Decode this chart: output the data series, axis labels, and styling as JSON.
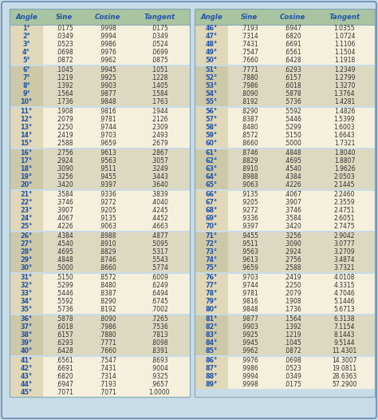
{
  "col_headers": [
    "Angle",
    "Sine",
    "Cosine",
    "Tangent"
  ],
  "header_bg": "#a8c4a0",
  "header_text_color": "#2255aa",
  "angle_color": "#2255aa",
  "value_color": "#333333",
  "outer_bg": "#c8dce8",
  "inner_bg_light": "#f5f0dc",
  "inner_bg_dark": "#ddd8c0",
  "table_border": "#88aabb",
  "outer_border": "#7799bb",
  "left_data": [
    [
      "1°",
      ".0175",
      ".9998",
      ".0175"
    ],
    [
      "2°",
      ".0349",
      ".9994",
      ".0349"
    ],
    [
      "3°",
      ".0523",
      ".9986",
      ".0524"
    ],
    [
      "4°",
      ".0698",
      ".9976",
      ".0699"
    ],
    [
      "5°",
      ".0872",
      ".9962",
      ".0875"
    ],
    [
      "6°",
      ".1045",
      ".9945",
      ".1051"
    ],
    [
      "7°",
      ".1219",
      ".9925",
      ".1228"
    ],
    [
      "8°",
      ".1392",
      ".9903",
      ".1405"
    ],
    [
      "9°",
      ".1564",
      ".9877",
      ".1584"
    ],
    [
      "10°",
      ".1736",
      ".9848",
      ".1763"
    ],
    [
      "11°",
      ".1908",
      ".9816",
      ".1944"
    ],
    [
      "12°",
      ".2079",
      ".9781",
      ".2126"
    ],
    [
      "13°",
      ".2250",
      ".9744",
      ".2309"
    ],
    [
      "14°",
      ".2419",
      ".9703",
      ".2493"
    ],
    [
      "15°",
      ".2588",
      ".9659",
      ".2679"
    ],
    [
      "16°",
      ".2756",
      ".9613",
      ".2867"
    ],
    [
      "17°",
      ".2924",
      ".9563",
      ".3057"
    ],
    [
      "18°",
      ".3090",
      ".9511",
      ".3249"
    ],
    [
      "19°",
      ".3256",
      ".9455",
      ".3443"
    ],
    [
      "20°",
      ".3420",
      ".9397",
      ".3640"
    ],
    [
      "21°",
      ".3584",
      ".9336",
      ".3839"
    ],
    [
      "22°",
      ".3746",
      ".9272",
      ".4040"
    ],
    [
      "23°",
      ".3907",
      ".9205",
      ".4245"
    ],
    [
      "24°",
      ".4067",
      ".9135",
      ".4452"
    ],
    [
      "25°",
      ".4226",
      ".9063",
      ".4663"
    ],
    [
      "26°",
      ".4384",
      ".8988",
      ".4877"
    ],
    [
      "27°",
      ".4540",
      ".8910",
      ".5095"
    ],
    [
      "28°",
      ".4695",
      ".8829",
      ".5317"
    ],
    [
      "29°",
      ".4848",
      ".8746",
      ".5543"
    ],
    [
      "30°",
      ".5000",
      ".8660",
      ".5774"
    ],
    [
      "31°",
      ".5150",
      ".8572",
      ".6009"
    ],
    [
      "32°",
      ".5299",
      ".8480",
      ".6249"
    ],
    [
      "33°",
      ".5446",
      ".8387",
      ".6494"
    ],
    [
      "34°",
      ".5592",
      ".8290",
      ".6745"
    ],
    [
      "35°",
      ".5736",
      ".8192",
      ".7002"
    ],
    [
      "36°",
      ".5878",
      ".8090",
      ".7265"
    ],
    [
      "37°",
      ".6018",
      ".7986",
      ".7536"
    ],
    [
      "38°",
      ".6157",
      ".7880",
      ".7813"
    ],
    [
      "39°",
      ".6293",
      ".7771",
      ".8098"
    ],
    [
      "40°",
      ".6428",
      ".7660",
      ".8391"
    ],
    [
      "41°",
      ".6561",
      ".7547",
      ".8693"
    ],
    [
      "42°",
      ".6691",
      ".7431",
      ".9004"
    ],
    [
      "43°",
      ".6820",
      ".7314",
      ".9325"
    ],
    [
      "44°",
      ".6947",
      ".7193",
      ".9657"
    ],
    [
      "45°",
      ".7071",
      ".7071",
      "1.0000"
    ]
  ],
  "right_data": [
    [
      "46°",
      ".7193",
      ".6947",
      "1.0355"
    ],
    [
      "47°",
      ".7314",
      ".6820",
      "1.0724"
    ],
    [
      "48°",
      ".7431",
      ".6691",
      "1.1106"
    ],
    [
      "49°",
      ".7547",
      ".6561",
      "1.1504"
    ],
    [
      "50°",
      ".7660",
      ".6428",
      "1.1918"
    ],
    [
      "51°",
      ".7771",
      ".6293",
      "1.2349"
    ],
    [
      "52°",
      ".7880",
      ".6157",
      "1.2799"
    ],
    [
      "53°",
      ".7986",
      ".6018",
      "1.3270"
    ],
    [
      "54°",
      ".8090",
      ".5878",
      "1.3764"
    ],
    [
      "55°",
      ".8192",
      ".5736",
      "1.4281"
    ],
    [
      "56°",
      ".8290",
      ".5592",
      "1.4826"
    ],
    [
      "57°",
      ".8387",
      ".5446",
      "1.5399"
    ],
    [
      "58°",
      ".8480",
      ".5299",
      "1.6003"
    ],
    [
      "59°",
      ".8572",
      ".5150",
      "1.6643"
    ],
    [
      "60°",
      ".8660",
      ".5000",
      "1.7321"
    ],
    [
      "61°",
      ".8746",
      ".4848",
      "1.8040"
    ],
    [
      "62°",
      ".8829",
      ".4695",
      "1.8807"
    ],
    [
      "63°",
      ".8910",
      ".4540",
      "1.9626"
    ],
    [
      "64°",
      ".8988",
      ".4384",
      "2.0503"
    ],
    [
      "65°",
      ".9063",
      ".4226",
      "2.1445"
    ],
    [
      "66°",
      ".9135",
      ".4067",
      "2.2460"
    ],
    [
      "67°",
      ".9205",
      ".3907",
      "2.3559"
    ],
    [
      "68°",
      ".9272",
      ".3746",
      "2.4751"
    ],
    [
      "69°",
      ".9336",
      ".3584",
      "2.6051"
    ],
    [
      "70°",
      ".9397",
      ".3420",
      "2.7475"
    ],
    [
      "71°",
      ".9455",
      ".3256",
      "2.9042"
    ],
    [
      "72°",
      ".9511",
      ".3090",
      "3.0777"
    ],
    [
      "73°",
      ".9563",
      ".2924",
      "3.2709"
    ],
    [
      "74°",
      ".9613",
      ".2756",
      "3.4874"
    ],
    [
      "75°",
      ".9659",
      ".2588",
      "3.7321"
    ],
    [
      "76°",
      ".9703",
      ".2419",
      "4.0108"
    ],
    [
      "77°",
      ".9744",
      ".2250",
      "4.3315"
    ],
    [
      "78°",
      ".9781",
      ".2079",
      "4.7046"
    ],
    [
      "79°",
      ".9816",
      ".1908",
      "5.1446"
    ],
    [
      "80°",
      ".9848",
      ".1736",
      "5.6713"
    ],
    [
      "81°",
      ".9877",
      ".1564",
      "6.3138"
    ],
    [
      "82°",
      ".9903",
      ".1392",
      "7.1154"
    ],
    [
      "83°",
      ".9925",
      ".1219",
      "8.1443"
    ],
    [
      "84°",
      ".9945",
      ".1045",
      "9.5144"
    ],
    [
      "85°",
      ".9962",
      ".0872",
      "11.4301"
    ],
    [
      "86°",
      ".9976",
      ".0698",
      "14.3007"
    ],
    [
      "87°",
      ".9986",
      ".0523",
      "19.0811"
    ],
    [
      "88°",
      ".9994",
      ".0349",
      "28.6363"
    ],
    [
      "89°",
      ".9998",
      ".0175",
      "57.2900"
    ]
  ]
}
